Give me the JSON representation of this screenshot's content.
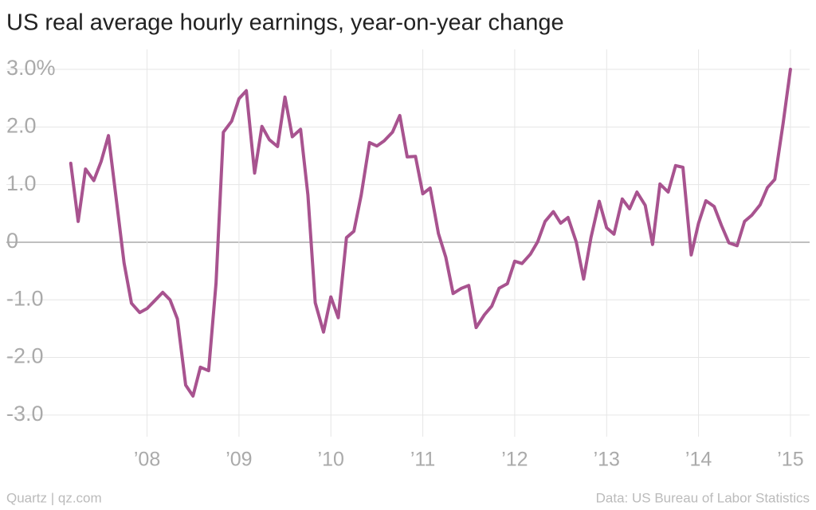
{
  "chart_data": {
    "type": "line",
    "title": "US real average hourly earnings, year-on-year change",
    "source_left": "Quartz | qz.com",
    "source_right": "Data: US Bureau of Labor Statistics",
    "color": "#a8538f",
    "grid": true,
    "x": [
      2007.17,
      2007.25,
      2007.33,
      2007.42,
      2007.5,
      2007.58,
      2007.67,
      2007.75,
      2007.83,
      2007.92,
      2008.0,
      2008.08,
      2008.17,
      2008.25,
      2008.33,
      2008.42,
      2008.5,
      2008.58,
      2008.67,
      2008.75,
      2008.83,
      2008.92,
      2009.0,
      2009.08,
      2009.17,
      2009.25,
      2009.33,
      2009.42,
      2009.5,
      2009.58,
      2009.67,
      2009.75,
      2009.83,
      2009.92,
      2010.0,
      2010.08,
      2010.17,
      2010.25,
      2010.33,
      2010.42,
      2010.5,
      2010.58,
      2010.67,
      2010.75,
      2010.83,
      2010.92,
      2011.0,
      2011.08,
      2011.17,
      2011.25,
      2011.33,
      2011.42,
      2011.5,
      2011.58,
      2011.67,
      2011.75,
      2011.83,
      2011.92,
      2012.0,
      2012.08,
      2012.17,
      2012.25,
      2012.33,
      2012.42,
      2012.5,
      2012.58,
      2012.67,
      2012.75,
      2012.83,
      2012.92,
      2013.0,
      2013.08,
      2013.17,
      2013.25,
      2013.33,
      2013.42,
      2013.5,
      2013.58,
      2013.67,
      2013.75,
      2013.83,
      2013.92,
      2014.0,
      2014.08,
      2014.17,
      2014.25,
      2014.33,
      2014.42,
      2014.5,
      2014.58,
      2014.67,
      2014.75,
      2014.83,
      2014.92,
      2015.0
    ],
    "values": [
      1.37,
      0.36,
      1.27,
      1.07,
      1.4,
      1.85,
      0.68,
      -0.36,
      -1.06,
      -1.22,
      -1.15,
      -1.02,
      -0.87,
      -1.0,
      -1.33,
      -2.48,
      -2.67,
      -2.17,
      -2.23,
      -0.71,
      1.91,
      2.1,
      2.49,
      2.63,
      1.2,
      2.01,
      1.78,
      1.66,
      2.52,
      1.83,
      1.96,
      0.82,
      -1.05,
      -1.56,
      -0.95,
      -1.31,
      0.08,
      0.19,
      0.82,
      1.73,
      1.67,
      1.76,
      1.91,
      2.2,
      1.48,
      1.49,
      0.84,
      0.94,
      0.15,
      -0.26,
      -0.89,
      -0.8,
      -0.75,
      -1.48,
      -1.26,
      -1.11,
      -0.8,
      -0.72,
      -0.33,
      -0.37,
      -0.21,
      0.01,
      0.36,
      0.53,
      0.33,
      0.43,
      0.0,
      -0.64,
      0.08,
      0.71,
      0.25,
      0.14,
      0.75,
      0.58,
      0.87,
      0.64,
      -0.04,
      1.01,
      0.87,
      1.33,
      1.3,
      -0.22,
      0.33,
      0.72,
      0.62,
      0.29,
      -0.01,
      -0.06,
      0.36,
      0.47,
      0.65,
      0.95,
      1.09,
      2.06,
      3.0
    ],
    "xlim": [
      2006.92,
      2015.2
    ],
    "xticks": [
      {
        "value": 2008,
        "label": "’08"
      },
      {
        "value": 2009,
        "label": "’09"
      },
      {
        "value": 2010,
        "label": "’10"
      },
      {
        "value": 2011,
        "label": "’11"
      },
      {
        "value": 2012,
        "label": "’12"
      },
      {
        "value": 2013,
        "label": "’13"
      },
      {
        "value": 2014,
        "label": "’14"
      },
      {
        "value": 2015,
        "label": "’15"
      }
    ],
    "ylim": [
      -3.5,
      3.5
    ],
    "yticks": [
      {
        "value": 3,
        "label": "3.0%"
      },
      {
        "value": 2,
        "label": "2.0"
      },
      {
        "value": 1,
        "label": "1.0"
      },
      0,
      {
        "value": -1,
        "label": "-1.0"
      },
      {
        "value": -2,
        "label": "-2.0"
      },
      {
        "value": -3,
        "label": "-3.0"
      }
    ]
  }
}
